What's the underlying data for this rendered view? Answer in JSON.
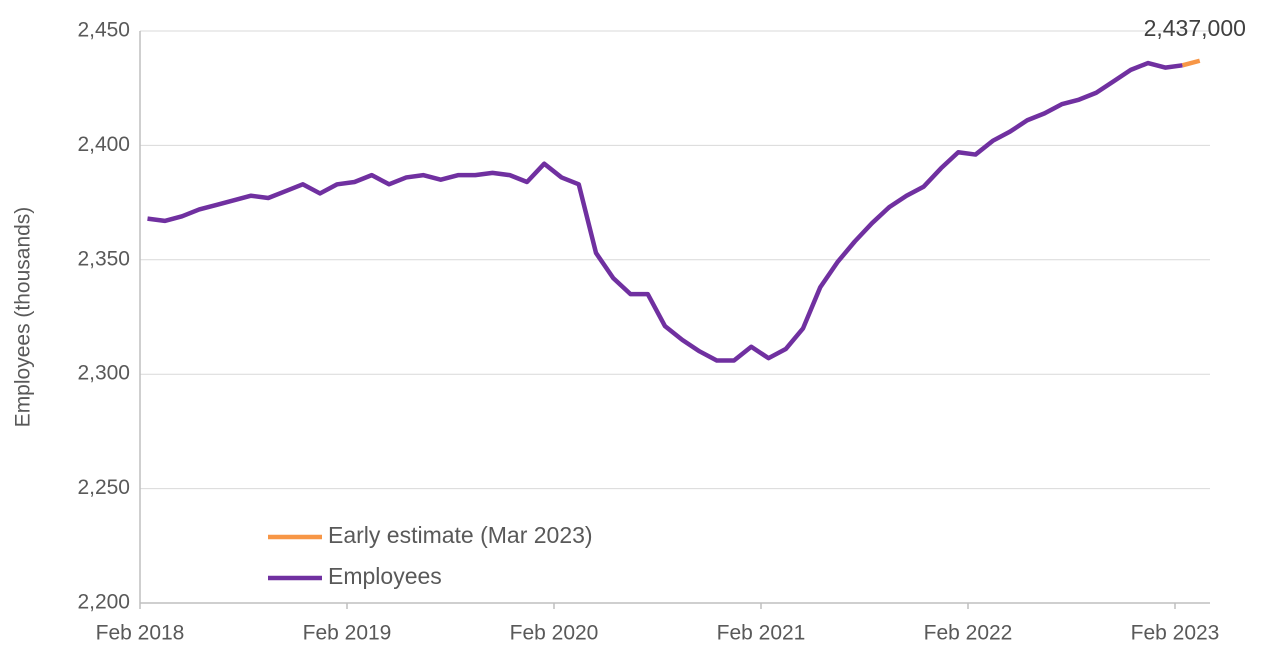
{
  "chart_data": {
    "type": "line",
    "categories": [
      "Feb 2018",
      null,
      null,
      null,
      null,
      null,
      null,
      null,
      null,
      null,
      null,
      null,
      "Feb 2019",
      null,
      null,
      null,
      null,
      null,
      null,
      null,
      null,
      null,
      null,
      null,
      "Feb 2020",
      null,
      null,
      null,
      null,
      null,
      null,
      null,
      null,
      null,
      null,
      null,
      "Feb 2021",
      null,
      null,
      null,
      null,
      null,
      null,
      null,
      null,
      null,
      null,
      null,
      "Feb 2022",
      null,
      null,
      null,
      null,
      null,
      null,
      null,
      null,
      null,
      null,
      null,
      "Feb 2023",
      null
    ],
    "y_axis_label": "Employees (thousands)",
    "series": [
      {
        "name": "Early estimate (Mar 2023)",
        "color": "#f79646",
        "values": [
          null,
          null,
          null,
          null,
          null,
          null,
          null,
          null,
          null,
          null,
          null,
          null,
          null,
          null,
          null,
          null,
          null,
          null,
          null,
          null,
          null,
          null,
          null,
          null,
          null,
          null,
          null,
          null,
          null,
          null,
          null,
          null,
          null,
          null,
          null,
          null,
          null,
          null,
          null,
          null,
          null,
          null,
          null,
          null,
          null,
          null,
          null,
          null,
          null,
          null,
          null,
          null,
          null,
          null,
          null,
          null,
          null,
          null,
          null,
          null,
          2435,
          2437
        ],
        "value_labels": [
          null,
          null,
          null,
          null,
          null,
          null,
          null,
          null,
          null,
          null,
          null,
          null,
          null,
          null,
          null,
          null,
          null,
          null,
          null,
          null,
          null,
          null,
          null,
          null,
          null,
          null,
          null,
          null,
          null,
          null,
          null,
          null,
          null,
          null,
          null,
          null,
          null,
          null,
          null,
          null,
          null,
          null,
          null,
          null,
          null,
          null,
          null,
          null,
          null,
          null,
          null,
          null,
          null,
          null,
          null,
          null,
          null,
          null,
          null,
          null,
          null,
          "2,437,000"
        ]
      },
      {
        "name": "Employees",
        "color": "#7030a0",
        "values": [
          2368,
          2367,
          2369,
          2372,
          2374,
          2376,
          2378,
          2377,
          2380,
          2383,
          2379,
          2383,
          2384,
          2387,
          2383,
          2386,
          2387,
          2385,
          2387,
          2387,
          2388,
          2387,
          2384,
          2392,
          2386,
          2383,
          2353,
          2342,
          2335,
          2335,
          2321,
          2315,
          2310,
          2306,
          2306,
          2312,
          2307,
          2311,
          2320,
          2338,
          2349,
          2358,
          2366,
          2373,
          2378,
          2382,
          2390,
          2397,
          2396,
          2402,
          2406,
          2411,
          2414,
          2418,
          2420,
          2423,
          2428,
          2433,
          2436,
          2434,
          2435,
          null
        ]
      }
    ],
    "ylim": [
      2200,
      2450
    ],
    "yticks": [
      {
        "value": 2200,
        "label": "2,200"
      },
      {
        "value": 2250,
        "label": "2,250"
      },
      {
        "value": 2300,
        "label": "2,300"
      },
      {
        "value": 2350,
        "label": "2,350"
      },
      {
        "value": 2400,
        "label": "2,400"
      },
      {
        "value": 2450,
        "label": "2,450"
      }
    ],
    "grid": true,
    "legend": "lower left"
  }
}
